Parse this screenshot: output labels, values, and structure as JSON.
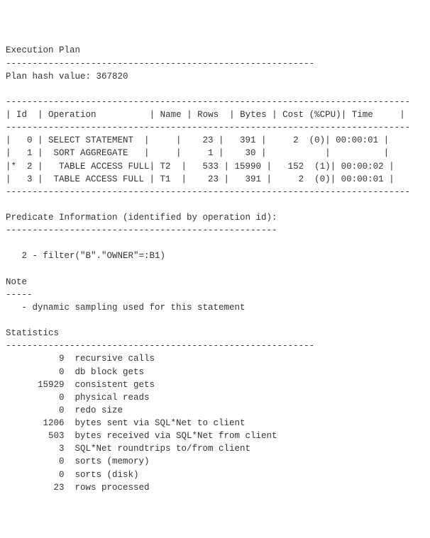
{
  "background_color": "#ffffff",
  "text_color": "#333333",
  "font_family": "Courier New",
  "font_size_pt": 10,
  "header": {
    "title": "Execution Plan",
    "dash_line": "----------------------------------------------------------",
    "plan_hash_label": "Plan hash value:",
    "plan_hash_value": "367820"
  },
  "plan_table": {
    "border_line": "----------------------------------------------------------------------------",
    "columns": [
      "Id",
      "Operation",
      "Name",
      "Rows",
      "Bytes",
      "Cost (%CPU)",
      "Time"
    ],
    "rows": [
      {
        "mark": " ",
        "id": "0",
        "operation": "SELECT STATEMENT ",
        "name": "",
        "rows": "23",
        "bytes": "391",
        "cost": "2",
        "cpu": "(0)",
        "time": "00:00:01"
      },
      {
        "mark": " ",
        "id": "1",
        "operation": " SORT AGGREGATE  ",
        "name": "",
        "rows": "1",
        "bytes": "30",
        "cost": "",
        "cpu": "",
        "time": ""
      },
      {
        "mark": "*",
        "id": "2",
        "operation": "  TABLE ACCESS FULL",
        "name": "T2",
        "rows": "533",
        "bytes": "15990",
        "cost": "152",
        "cpu": "(1)",
        "time": "00:00:02"
      },
      {
        "mark": " ",
        "id": "3",
        "operation": " TABLE ACCESS FULL ",
        "name": "T1",
        "rows": "23",
        "bytes": "391",
        "cost": "2",
        "cpu": "(0)",
        "time": "00:00:01"
      }
    ]
  },
  "predicate": {
    "title": "Predicate Information (identified by operation id):",
    "dash_line": "---------------------------------------------------",
    "lines": [
      "   2 - filter(\"B\".\"OWNER\"=:B1)"
    ]
  },
  "note": {
    "title": "Note",
    "dash_line": "-----",
    "lines": [
      "   - dynamic sampling used for this statement"
    ]
  },
  "statistics": {
    "title": "Statistics",
    "dash_line": "----------------------------------------------------------",
    "rows": [
      {
        "value": "9",
        "label": "recursive calls"
      },
      {
        "value": "0",
        "label": "db block gets"
      },
      {
        "value": "15929",
        "label": "consistent gets"
      },
      {
        "value": "0",
        "label": "physical reads"
      },
      {
        "value": "0",
        "label": "redo size"
      },
      {
        "value": "1206",
        "label": "bytes sent via SQL*Net to client"
      },
      {
        "value": "503",
        "label": "bytes received via SQL*Net from client"
      },
      {
        "value": "3",
        "label": "SQL*Net roundtrips to/from client"
      },
      {
        "value": "0",
        "label": "sorts (memory)"
      },
      {
        "value": "0",
        "label": "sorts (disk)"
      },
      {
        "value": "23",
        "label": "rows processed"
      }
    ]
  }
}
